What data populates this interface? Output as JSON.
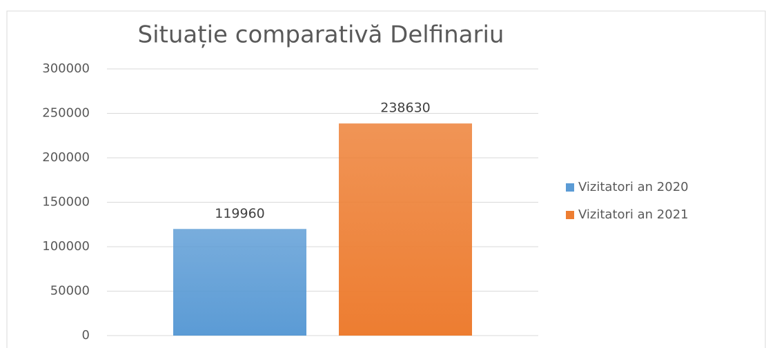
{
  "chart_data": {
    "type": "bar",
    "title": "Situație comparativă Delfinariu",
    "categories": [
      null
    ],
    "series": [
      {
        "name": "Vizitatori an 2020",
        "color": "#5b9bd5",
        "values": [
          119960
        ]
      },
      {
        "name": "Vizitatori an 2021",
        "color": "#ed7d31",
        "values": [
          238630
        ]
      }
    ],
    "ylim": [
      0,
      300000
    ],
    "yticks": [
      0,
      50000,
      100000,
      150000,
      200000,
      250000,
      300000
    ],
    "grid": true,
    "legend": "right"
  }
}
